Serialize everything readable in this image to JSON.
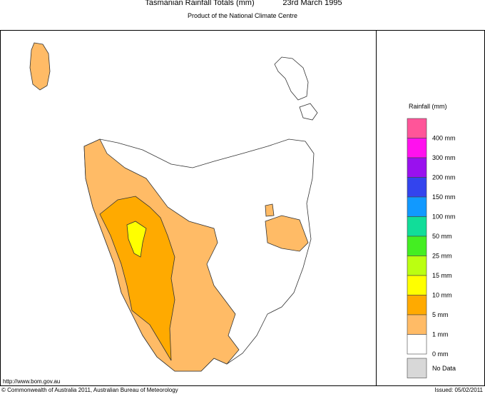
{
  "header": {
    "title": "Tasmanian Rainfall Totals (mm)",
    "date": "23rd March 1995",
    "subtitle": "Product of the National Climate Centre"
  },
  "legend": {
    "title": "Rainfall (mm)",
    "items": [
      {
        "label": "400 mm",
        "color": "#ff5599"
      },
      {
        "label": "300 mm",
        "color": "#ff11ee"
      },
      {
        "label": "200 mm",
        "color": "#9911ee"
      },
      {
        "label": "150 mm",
        "color": "#3344ee"
      },
      {
        "label": "100 mm",
        "color": "#1199ff"
      },
      {
        "label": "50 mm",
        "color": "#11dd99"
      },
      {
        "label": "25 mm",
        "color": "#44ee22"
      },
      {
        "label": "15 mm",
        "color": "#bbff11"
      },
      {
        "label": "10 mm",
        "color": "#ffff00"
      },
      {
        "label": "5 mm",
        "color": "#ffaa00"
      },
      {
        "label": "1 mm",
        "color": "#ffbb66"
      },
      {
        "label": "0 mm",
        "color": "#ffffff"
      }
    ],
    "no_data": {
      "label": "No Data",
      "color": "#d8d8d8"
    }
  },
  "footer": {
    "url": "http://www.bom.gov.au",
    "copyright": "© Commonwealth of Australia 2011, Australian Bureau of Meteorology",
    "issued": "Issued: 05/02/2011"
  }
}
